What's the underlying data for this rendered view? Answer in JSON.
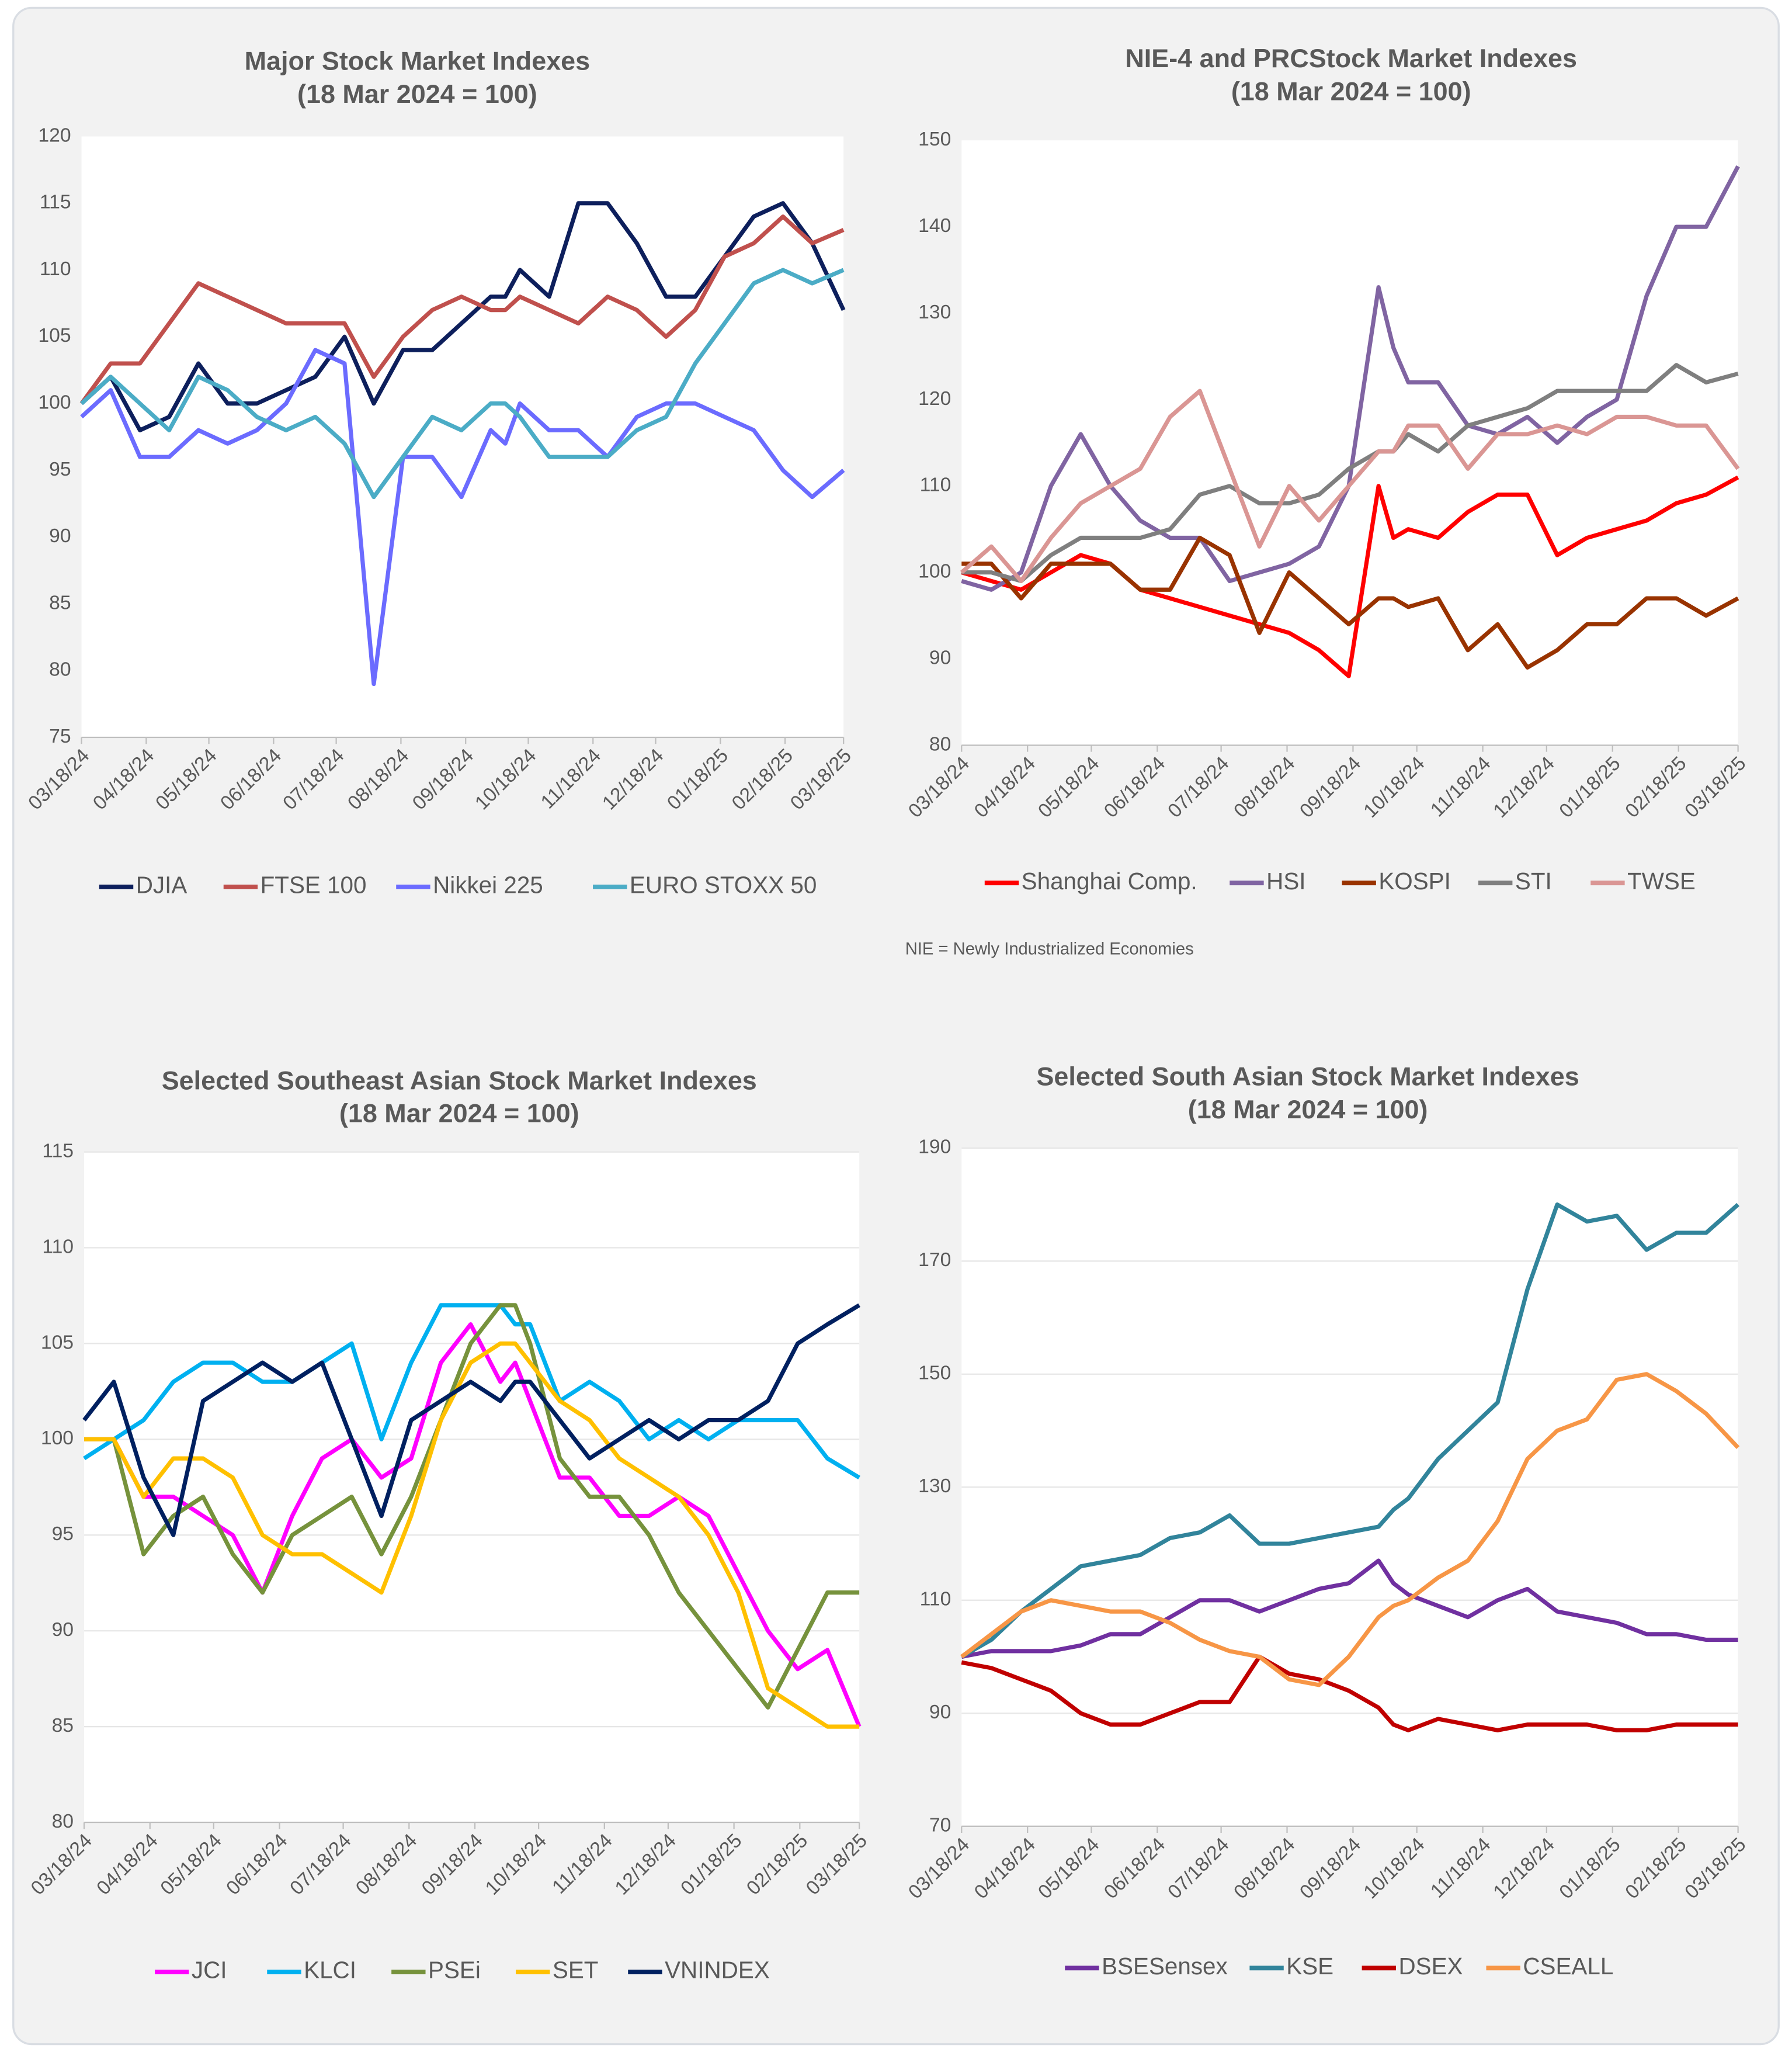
{
  "chart_data": [
    {
      "type": "line",
      "title": "Major Stock Market Indexes",
      "subtitle": "(18 Mar 2024 = 100)",
      "x": [
        "03/18/24",
        "04/01/24",
        "04/15/24",
        "04/29/24",
        "05/13/24",
        "05/27/24",
        "06/10/24",
        "06/24/24",
        "07/08/24",
        "07/22/24",
        "08/05/24",
        "08/19/24",
        "09/02/24",
        "09/16/24",
        "09/30/24",
        "10/07/24",
        "10/14/24",
        "10/28/24",
        "11/11/24",
        "11/25/24",
        "12/09/24",
        "12/23/24",
        "01/06/25",
        "01/20/25",
        "02/03/25",
        "02/17/25",
        "03/03/25",
        "03/18/25"
      ],
      "xlim": [
        "03/18/24",
        "03/18/25"
      ],
      "xticks": [
        "03/18/24",
        "04/18/24",
        "05/18/24",
        "06/18/24",
        "07/18/24",
        "08/18/24",
        "09/18/24",
        "10/18/24",
        "11/18/24",
        "12/18/24",
        "01/18/25",
        "02/18/25",
        "03/18/25"
      ],
      "ylim": [
        75,
        120
      ],
      "yticks": [
        75,
        80,
        85,
        90,
        95,
        100,
        105,
        110,
        115,
        120
      ],
      "grid": false,
      "series": [
        {
          "name": "DJIA",
          "color": "#0d1f5c",
          "values": [
            100,
            102,
            98,
            99,
            103,
            100,
            100,
            101,
            102,
            105,
            100,
            104,
            104,
            106,
            108,
            108,
            110,
            108,
            115,
            115,
            112,
            108,
            108,
            111,
            114,
            115,
            112,
            107
          ]
        },
        {
          "name": "FTSE 100",
          "color": "#c0504d",
          "values": [
            100,
            103,
            103,
            106,
            109,
            108,
            107,
            106,
            106,
            106,
            102,
            105,
            107,
            108,
            107,
            107,
            108,
            107,
            106,
            108,
            107,
            105,
            107,
            111,
            112,
            114,
            112,
            113
          ]
        },
        {
          "name": "Nikkei 225",
          "color": "#6b6bff",
          "values": [
            99,
            101,
            96,
            96,
            98,
            97,
            98,
            100,
            104,
            103,
            79,
            96,
            96,
            93,
            98,
            97,
            100,
            98,
            98,
            96,
            99,
            100,
            100,
            99,
            98,
            95,
            93,
            95
          ]
        },
        {
          "name": "EURO STOXX 50",
          "color": "#4bacc6",
          "values": [
            100,
            102,
            100,
            98,
            102,
            101,
            99,
            98,
            99,
            97,
            93,
            96,
            99,
            98,
            100,
            100,
            99,
            96,
            96,
            96,
            98,
            99,
            103,
            106,
            109,
            110,
            109,
            110
          ]
        }
      ]
    },
    {
      "type": "line",
      "title": "NIE-4 and PRCStock Market Indexes",
      "subtitle": "(18 Mar 2024 = 100)",
      "note": "NIE = Newly Industrialized Economies",
      "x": [
        "03/18/24",
        "04/01/24",
        "04/15/24",
        "04/29/24",
        "05/13/24",
        "05/27/24",
        "06/10/24",
        "06/24/24",
        "07/08/24",
        "07/22/24",
        "08/05/24",
        "08/19/24",
        "09/02/24",
        "09/16/24",
        "09/30/24",
        "10/07/24",
        "10/14/24",
        "10/28/24",
        "11/11/24",
        "11/25/24",
        "12/09/24",
        "12/23/24",
        "01/06/25",
        "01/20/25",
        "02/03/25",
        "02/17/25",
        "03/03/25",
        "03/18/25"
      ],
      "xlim": [
        "03/18/24",
        "03/18/25"
      ],
      "xticks": [
        "03/18/24",
        "04/18/24",
        "05/18/24",
        "06/18/24",
        "07/18/24",
        "08/18/24",
        "09/18/24",
        "10/18/24",
        "11/18/24",
        "12/18/24",
        "01/18/25",
        "02/18/25",
        "03/18/25"
      ],
      "ylim": [
        80,
        150
      ],
      "yticks": [
        80,
        90,
        100,
        110,
        120,
        130,
        140,
        150
      ],
      "grid": false,
      "series": [
        {
          "name": "Shanghai Comp.",
          "color": "#ff0000",
          "values": [
            100,
            99,
            98,
            100,
            102,
            101,
            98,
            97,
            96,
            95,
            94,
            93,
            91,
            88,
            110,
            104,
            105,
            104,
            107,
            109,
            109,
            102,
            104,
            105,
            106,
            108,
            109,
            111
          ]
        },
        {
          "name": "HSI",
          "color": "#8064a2",
          "values": [
            99,
            98,
            100,
            110,
            116,
            110,
            106,
            104,
            104,
            99,
            100,
            101,
            103,
            110,
            133,
            126,
            122,
            122,
            117,
            116,
            118,
            115,
            118,
            120,
            132,
            140,
            140,
            147
          ]
        },
        {
          "name": "KOSPI",
          "color": "#993300",
          "values": [
            101,
            101,
            97,
            101,
            101,
            101,
            98,
            98,
            104,
            102,
            93,
            100,
            97,
            94,
            97,
            97,
            96,
            97,
            91,
            94,
            89,
            91,
            94,
            94,
            97,
            97,
            95,
            97
          ]
        },
        {
          "name": "STI",
          "color": "#7f7f7f",
          "values": [
            100,
            100,
            99,
            102,
            104,
            104,
            104,
            105,
            109,
            110,
            108,
            108,
            109,
            112,
            114,
            114,
            116,
            114,
            117,
            118,
            119,
            121,
            121,
            121,
            121,
            124,
            122,
            123
          ]
        },
        {
          "name": "TWSE",
          "color": "#da9694",
          "values": [
            100,
            103,
            99,
            104,
            108,
            110,
            112,
            118,
            121,
            112,
            103,
            110,
            106,
            110,
            114,
            114,
            117,
            117,
            112,
            116,
            116,
            117,
            116,
            118,
            118,
            117,
            117,
            112
          ]
        }
      ]
    },
    {
      "type": "line",
      "title": "Selected Southeast Asian Stock Market Indexes",
      "subtitle": "(18 Mar 2024 = 100)",
      "x": [
        "03/18/24",
        "04/01/24",
        "04/15/24",
        "04/29/24",
        "05/13/24",
        "05/27/24",
        "06/10/24",
        "06/24/24",
        "07/08/24",
        "07/22/24",
        "08/05/24",
        "08/19/24",
        "09/02/24",
        "09/16/24",
        "09/30/24",
        "10/07/24",
        "10/14/24",
        "10/28/24",
        "11/11/24",
        "11/25/24",
        "12/09/24",
        "12/23/24",
        "01/06/25",
        "01/20/25",
        "02/03/25",
        "02/17/25",
        "03/03/25",
        "03/18/25"
      ],
      "xlim": [
        "03/18/24",
        "03/18/25"
      ],
      "xticks": [
        "03/18/24",
        "04/18/24",
        "05/18/24",
        "06/18/24",
        "07/18/24",
        "08/18/24",
        "09/18/24",
        "10/18/24",
        "11/18/24",
        "12/18/24",
        "01/18/25",
        "02/18/25",
        "03/18/25"
      ],
      "ylim": [
        80,
        115
      ],
      "yticks": [
        80,
        85,
        90,
        95,
        100,
        105,
        110,
        115
      ],
      "grid": true,
      "series": [
        {
          "name": "JCI",
          "color": "#ff00ff",
          "values": [
            100,
            100,
            97,
            97,
            96,
            95,
            92,
            96,
            99,
            100,
            98,
            99,
            104,
            106,
            103,
            104,
            102,
            98,
            98,
            96,
            96,
            97,
            96,
            93,
            90,
            88,
            89,
            85
          ]
        },
        {
          "name": "KLCI",
          "color": "#00b0f0",
          "values": [
            99,
            100,
            101,
            103,
            104,
            104,
            103,
            103,
            104,
            105,
            100,
            104,
            107,
            107,
            107,
            106,
            106,
            102,
            103,
            102,
            100,
            101,
            100,
            101,
            101,
            101,
            99,
            98
          ]
        },
        {
          "name": "PSEi",
          "color": "#76923c",
          "values": [
            100,
            100,
            94,
            96,
            97,
            94,
            92,
            95,
            96,
            97,
            94,
            97,
            101,
            105,
            107,
            107,
            105,
            99,
            97,
            97,
            95,
            92,
            90,
            88,
            86,
            89,
            92,
            92
          ]
        },
        {
          "name": "SET",
          "color": "#ffc000",
          "values": [
            100,
            100,
            97,
            99,
            99,
            98,
            95,
            94,
            94,
            93,
            92,
            96,
            101,
            104,
            105,
            105,
            104,
            102,
            101,
            99,
            98,
            97,
            95,
            92,
            87,
            86,
            85,
            85
          ]
        },
        {
          "name": "VNINDEX",
          "color": "#002060",
          "values": [
            101,
            103,
            98,
            95,
            102,
            103,
            104,
            103,
            104,
            100,
            96,
            101,
            102,
            103,
            102,
            103,
            103,
            101,
            99,
            100,
            101,
            100,
            101,
            101,
            102,
            105,
            106,
            107
          ]
        }
      ]
    },
    {
      "type": "line",
      "title": "Selected South Asian Stock Market Indexes",
      "subtitle": "(18 Mar 2024 = 100)",
      "x": [
        "03/18/24",
        "04/01/24",
        "04/15/24",
        "04/29/24",
        "05/13/24",
        "05/27/24",
        "06/10/24",
        "06/24/24",
        "07/08/24",
        "07/22/24",
        "08/05/24",
        "08/19/24",
        "09/02/24",
        "09/16/24",
        "09/30/24",
        "10/07/24",
        "10/14/24",
        "10/28/24",
        "11/11/24",
        "11/25/24",
        "12/09/24",
        "12/23/24",
        "01/06/25",
        "01/20/25",
        "02/03/25",
        "02/17/25",
        "03/03/25",
        "03/18/25"
      ],
      "xlim": [
        "03/18/24",
        "03/18/25"
      ],
      "xticks": [
        "03/18/24",
        "04/18/24",
        "05/18/24",
        "06/18/24",
        "07/18/24",
        "08/18/24",
        "09/18/24",
        "10/18/24",
        "11/18/24",
        "12/18/24",
        "01/18/25",
        "02/18/25",
        "03/18/25"
      ],
      "ylim": [
        70,
        190
      ],
      "yticks": [
        70,
        90,
        110,
        130,
        150,
        170,
        190
      ],
      "grid": true,
      "series": [
        {
          "name": "BSESensex",
          "color": "#7030a0",
          "values": [
            100,
            101,
            101,
            101,
            102,
            104,
            104,
            107,
            110,
            110,
            108,
            110,
            112,
            113,
            117,
            113,
            111,
            109,
            107,
            110,
            112,
            108,
            107,
            106,
            104,
            104,
            103,
            103
          ]
        },
        {
          "name": "KSE",
          "color": "#31849b",
          "values": [
            100,
            103,
            108,
            112,
            116,
            117,
            118,
            121,
            122,
            125,
            120,
            120,
            121,
            122,
            123,
            126,
            128,
            135,
            140,
            145,
            165,
            180,
            177,
            178,
            172,
            175,
            175,
            180
          ]
        },
        {
          "name": "DSEX",
          "color": "#c00000",
          "values": [
            99,
            98,
            96,
            94,
            90,
            88,
            88,
            90,
            92,
            92,
            100,
            97,
            96,
            94,
            91,
            88,
            87,
            89,
            88,
            87,
            88,
            88,
            88,
            87,
            87,
            88,
            88,
            88
          ]
        },
        {
          "name": "CSEALL",
          "color": "#f79646",
          "values": [
            100,
            104,
            108,
            110,
            109,
            108,
            108,
            106,
            103,
            101,
            100,
            96,
            95,
            100,
            107,
            109,
            110,
            114,
            117,
            124,
            135,
            140,
            142,
            149,
            150,
            147,
            143,
            137
          ]
        }
      ]
    }
  ]
}
